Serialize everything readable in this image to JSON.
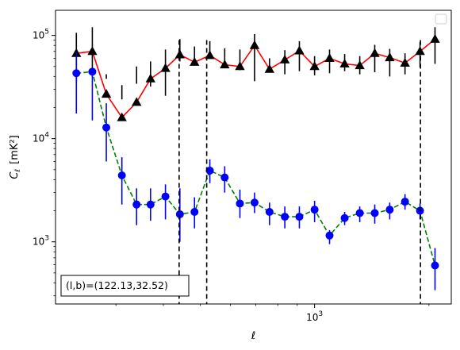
{
  "chart_data": {
    "type": "scatter",
    "xscale": "log",
    "yscale": "log",
    "xlabel": "ℓ",
    "ylabel_main": "C",
    "ylabel_sub": "ℓ",
    "ylabel_unit": "[mK²]",
    "xlim": [
      208,
      2290
    ],
    "ylim": [
      250,
      175000
    ],
    "x_ticks": [
      {
        "value": 1000,
        "base": "10",
        "exp": "3"
      }
    ],
    "y_ticks": [
      {
        "value": 1000,
        "base": "10",
        "exp": "3"
      },
      {
        "value": 10000,
        "base": "10",
        "exp": "4"
      },
      {
        "value": 100000,
        "base": "10",
        "exp": "5"
      }
    ],
    "legend": "top-right",
    "vlines": [
      440,
      520,
      1900
    ],
    "annotation": "(l,b)=(122.13,32.52)",
    "series": [
      {
        "marker": "triangle",
        "marker_color": "#000000",
        "line_color": "#ff0000",
        "line_style": "solid",
        "error_color": "#000000",
        "x": [
          236,
          260,
          283,
          311,
          340,
          370,
          405,
          442,
          483,
          530,
          580,
          636,
          695,
          761,
          835,
          912,
          1000,
          1095,
          1200,
          1315,
          1440,
          1577,
          1730,
          1895,
          2075
        ],
        "y": [
          67000,
          70000,
          27000,
          16000,
          22500,
          38000,
          48000,
          65000,
          55000,
          64000,
          52000,
          50000,
          80000,
          47000,
          58000,
          71000,
          50000,
          60000,
          53000,
          51000,
          67000,
          61000,
          54000,
          70000,
          92000
        ],
        "yerr_low": [
          35000,
          40000,
          38000,
          33000,
          50000,
          32000,
          26000,
          56000,
          54000,
          60000,
          48000,
          46000,
          36000,
          44000,
          42000,
          45000,
          41000,
          43000,
          45000,
          42000,
          44000,
          40000,
          42000,
          49000,
          53000
        ],
        "yerr_high": [
          106000,
          120000,
          42000,
          24000,
          34000,
          56000,
          73000,
          92000,
          78000,
          88000,
          75000,
          73000,
          103000,
          60000,
          72000,
          88000,
          63000,
          73000,
          66000,
          63000,
          81000,
          74000,
          67000,
          86000,
          120000
        ]
      },
      {
        "marker": "circle",
        "marker_color": "#0000ff",
        "line_color": "#008000",
        "line_style": "dashed",
        "error_color": "#0000ff",
        "x": [
          236,
          260,
          283,
          311,
          340,
          370,
          405,
          442,
          483,
          530,
          580,
          636,
          695,
          761,
          835,
          912,
          1000,
          1095,
          1200,
          1315,
          1440,
          1577,
          1730,
          1895,
          2075
        ],
        "y": [
          43000,
          44500,
          12800,
          4400,
          2300,
          2300,
          2750,
          1850,
          1950,
          4900,
          4200,
          2350,
          2400,
          1950,
          1750,
          1750,
          2050,
          1150,
          1700,
          1900,
          1900,
          2050,
          2450,
          2000,
          590
        ],
        "yerr_low": [
          17500,
          15000,
          6000,
          2300,
          1450,
          1600,
          1650,
          1000,
          1350,
          3700,
          3000,
          1700,
          1900,
          1450,
          1350,
          1350,
          1550,
          950,
          1450,
          1550,
          1500,
          1650,
          2050,
          1650,
          340
        ],
        "yerr_high": [
          68000,
          48000,
          22000,
          6600,
          3300,
          3300,
          3600,
          3300,
          2700,
          6300,
          5400,
          3200,
          3000,
          2400,
          2200,
          2200,
          2500,
          1300,
          1950,
          2200,
          2300,
          2400,
          2900,
          2350,
          870
        ]
      }
    ]
  }
}
